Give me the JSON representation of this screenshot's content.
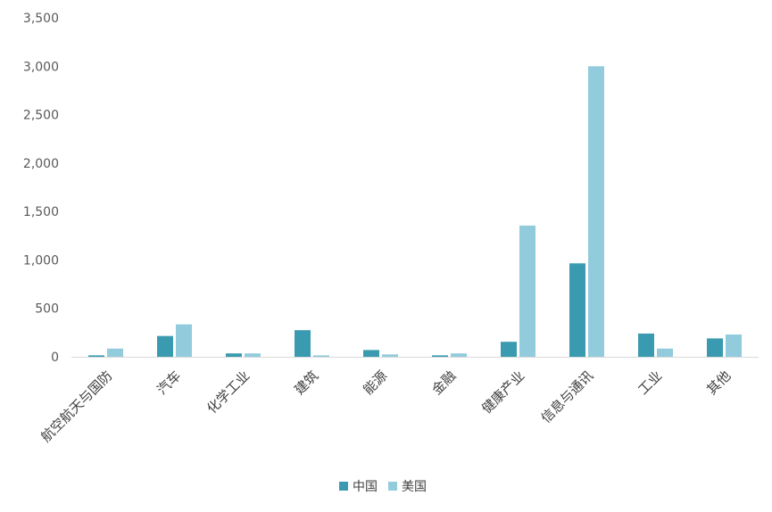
{
  "chart_data": {
    "type": "bar",
    "title": "",
    "xlabel": "",
    "ylabel": "",
    "ylim": [
      0,
      3500
    ],
    "yticks": [
      0,
      500,
      1000,
      1500,
      2000,
      2500,
      3000,
      3500
    ],
    "ytick_labels": [
      "0",
      "500",
      "1,000",
      "1,500",
      "2,000",
      "2,500",
      "3,000",
      "3,500"
    ],
    "grid": false,
    "legend_position": "bottom",
    "categories": [
      "航空航天与国防",
      "汽车",
      "化学工业",
      "建筑",
      "能源",
      "金融",
      "健康产业",
      "信息与通讯",
      "工业",
      "其他"
    ],
    "series": [
      {
        "name": "中国",
        "color": "#3a9bb0",
        "values": [
          15,
          215,
          35,
          275,
          70,
          15,
          155,
          965,
          240,
          190
        ]
      },
      {
        "name": "美国",
        "color": "#92cbdc",
        "values": [
          85,
          335,
          35,
          15,
          25,
          35,
          1355,
          3000,
          85,
          230
        ]
      }
    ]
  }
}
